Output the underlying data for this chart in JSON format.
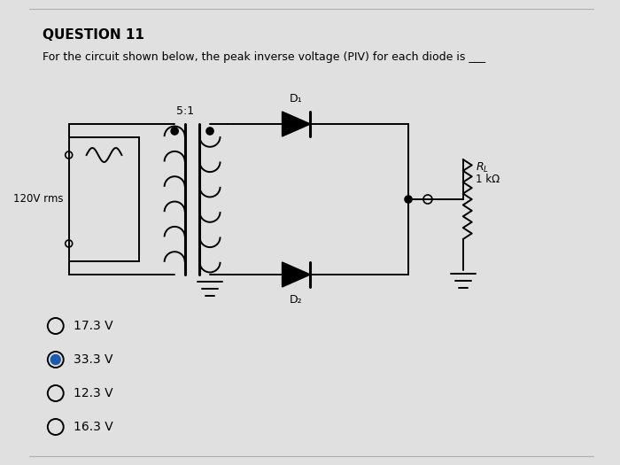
{
  "title": "QUESTION 11",
  "question_text": "For the circuit shown below, the peak inverse voltage (PIV) for each diode is ___",
  "options": [
    "17.3 V",
    "33.3 V",
    "12.3 V",
    "16.3 V"
  ],
  "selected_option": 1,
  "bg_color": "#e0e0e0",
  "text_color": "#000000",
  "selected_color": "#1a5aad",
  "circuit": {
    "source_label": "120V rms",
    "transformer_ratio": "5:1",
    "resistor_label": "R_L",
    "resistor_value": "1 kΩ",
    "diode1_label": "D₁",
    "diode2_label": "D₂"
  },
  "layout": {
    "fig_w": 7.0,
    "fig_h": 5.25,
    "dpi": 100
  }
}
